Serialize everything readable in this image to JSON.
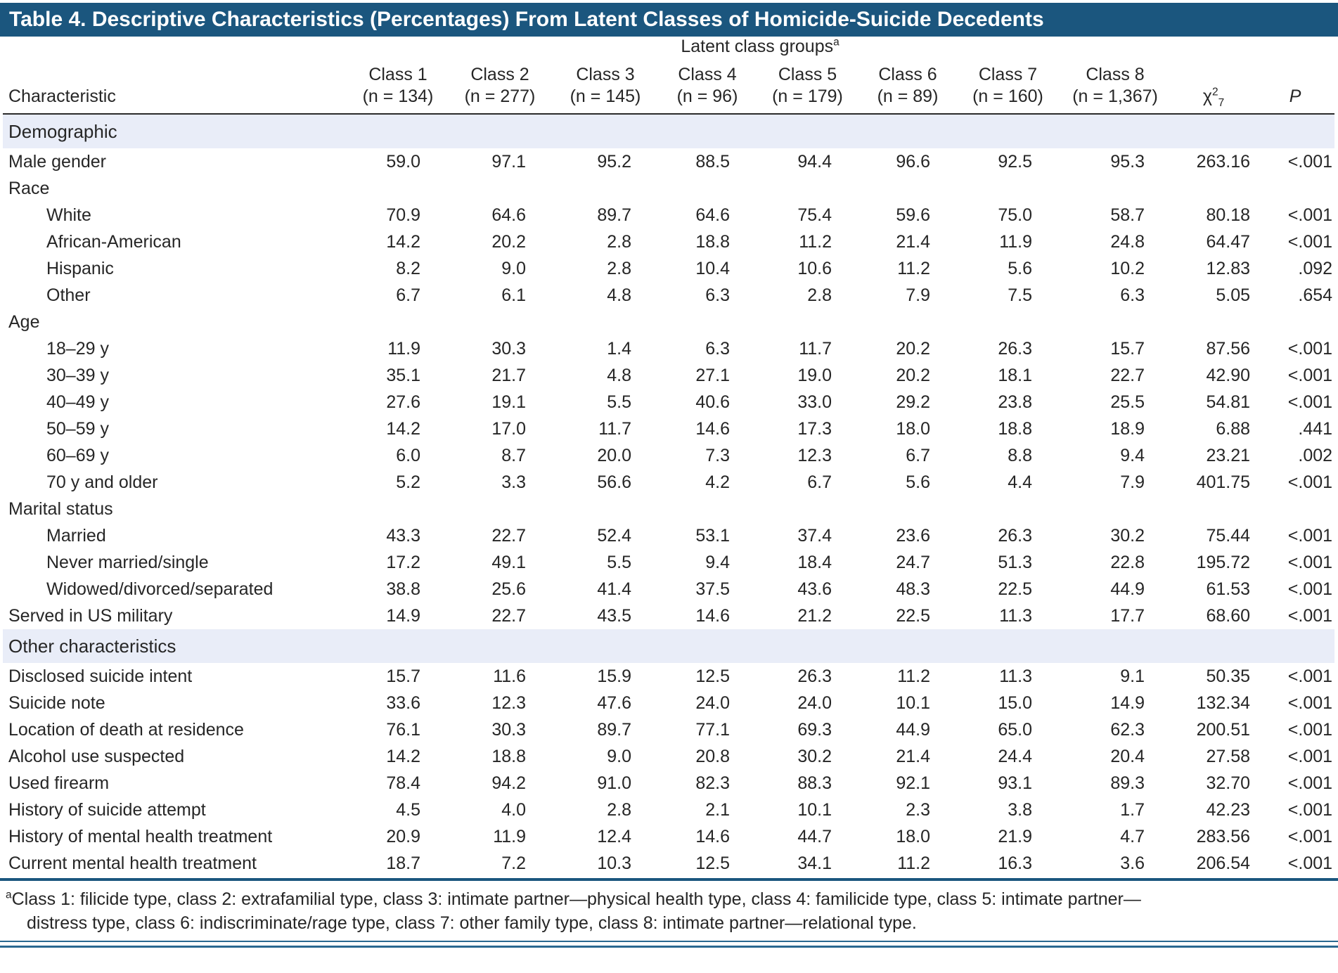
{
  "title": "Table 4. Descriptive Characteristics (Percentages) From Latent Classes of Homicide-Suicide Decedents",
  "header": {
    "group_label": "Latent class groups",
    "group_sup": "a",
    "characteristic": "Characteristic",
    "classes": [
      {
        "label": "Class 1",
        "n": "(n = 134)"
      },
      {
        "label": "Class 2",
        "n": "(n = 277)"
      },
      {
        "label": "Class 3",
        "n": "(n = 145)"
      },
      {
        "label": "Class 4",
        "n": "(n = 96)"
      },
      {
        "label": "Class 5",
        "n": "(n = 179)"
      },
      {
        "label": "Class 6",
        "n": "(n = 89)"
      },
      {
        "label": "Class 7",
        "n": "(n = 160)"
      },
      {
        "label": "Class 8",
        "n": "(n = 1,367)"
      }
    ],
    "chi": {
      "base": "χ",
      "sup": "2",
      "sub": "7"
    },
    "p_label": "P"
  },
  "sections": [
    {
      "name": "Demographic",
      "rows": [
        {
          "label": "Male gender",
          "indent": false,
          "values": [
            "59.0",
            "97.1",
            "95.2",
            "88.5",
            "94.4",
            "96.6",
            "92.5",
            "95.3",
            "263.16",
            "<.001"
          ]
        },
        {
          "label": "Race",
          "indent": false,
          "values": []
        },
        {
          "label": "White",
          "indent": true,
          "values": [
            "70.9",
            "64.6",
            "89.7",
            "64.6",
            "75.4",
            "59.6",
            "75.0",
            "58.7",
            "80.18",
            "<.001"
          ]
        },
        {
          "label": "African-American",
          "indent": true,
          "values": [
            "14.2",
            "20.2",
            "2.8",
            "18.8",
            "11.2",
            "21.4",
            "11.9",
            "24.8",
            "64.47",
            "<.001"
          ]
        },
        {
          "label": "Hispanic",
          "indent": true,
          "values": [
            "8.2",
            "9.0",
            "2.8",
            "10.4",
            "10.6",
            "11.2",
            "5.6",
            "10.2",
            "12.83",
            ".092"
          ]
        },
        {
          "label": "Other",
          "indent": true,
          "values": [
            "6.7",
            "6.1",
            "4.8",
            "6.3",
            "2.8",
            "7.9",
            "7.5",
            "6.3",
            "5.05",
            ".654"
          ]
        },
        {
          "label": "Age",
          "indent": false,
          "values": []
        },
        {
          "label": "18–29 y",
          "indent": true,
          "values": [
            "11.9",
            "30.3",
            "1.4",
            "6.3",
            "11.7",
            "20.2",
            "26.3",
            "15.7",
            "87.56",
            "<.001"
          ]
        },
        {
          "label": "30–39 y",
          "indent": true,
          "values": [
            "35.1",
            "21.7",
            "4.8",
            "27.1",
            "19.0",
            "20.2",
            "18.1",
            "22.7",
            "42.90",
            "<.001"
          ]
        },
        {
          "label": "40–49 y",
          "indent": true,
          "values": [
            "27.6",
            "19.1",
            "5.5",
            "40.6",
            "33.0",
            "29.2",
            "23.8",
            "25.5",
            "54.81",
            "<.001"
          ]
        },
        {
          "label": "50–59 y",
          "indent": true,
          "values": [
            "14.2",
            "17.0",
            "11.7",
            "14.6",
            "17.3",
            "18.0",
            "18.8",
            "18.9",
            "6.88",
            ".441"
          ]
        },
        {
          "label": "60–69 y",
          "indent": true,
          "values": [
            "6.0",
            "8.7",
            "20.0",
            "7.3",
            "12.3",
            "6.7",
            "8.8",
            "9.4",
            "23.21",
            ".002"
          ]
        },
        {
          "label": "70 y and older",
          "indent": true,
          "values": [
            "5.2",
            "3.3",
            "56.6",
            "4.2",
            "6.7",
            "5.6",
            "4.4",
            "7.9",
            "401.75",
            "<.001"
          ]
        },
        {
          "label": "Marital status",
          "indent": false,
          "values": []
        },
        {
          "label": "Married",
          "indent": true,
          "values": [
            "43.3",
            "22.7",
            "52.4",
            "53.1",
            "37.4",
            "23.6",
            "26.3",
            "30.2",
            "75.44",
            "<.001"
          ]
        },
        {
          "label": "Never married/single",
          "indent": true,
          "values": [
            "17.2",
            "49.1",
            "5.5",
            "9.4",
            "18.4",
            "24.7",
            "51.3",
            "22.8",
            "195.72",
            "<.001"
          ]
        },
        {
          "label": "Widowed/divorced/separated",
          "indent": true,
          "values": [
            "38.8",
            "25.6",
            "41.4",
            "37.5",
            "43.6",
            "48.3",
            "22.5",
            "44.9",
            "61.53",
            "<.001"
          ]
        },
        {
          "label": "Served in US military",
          "indent": false,
          "values": [
            "14.9",
            "22.7",
            "43.5",
            "14.6",
            "21.2",
            "22.5",
            "11.3",
            "17.7",
            "68.60",
            "<.001"
          ]
        }
      ]
    },
    {
      "name": "Other characteristics",
      "rows": [
        {
          "label": "Disclosed suicide intent",
          "indent": false,
          "values": [
            "15.7",
            "11.6",
            "15.9",
            "12.5",
            "26.3",
            "11.2",
            "11.3",
            "9.1",
            "50.35",
            "<.001"
          ]
        },
        {
          "label": "Suicide note",
          "indent": false,
          "values": [
            "33.6",
            "12.3",
            "47.6",
            "24.0",
            "24.0",
            "10.1",
            "15.0",
            "14.9",
            "132.34",
            "<.001"
          ]
        },
        {
          "label": "Location of death at residence",
          "indent": false,
          "values": [
            "76.1",
            "30.3",
            "89.7",
            "77.1",
            "69.3",
            "44.9",
            "65.0",
            "62.3",
            "200.51",
            "<.001"
          ]
        },
        {
          "label": "Alcohol use suspected",
          "indent": false,
          "values": [
            "14.2",
            "18.8",
            "9.0",
            "20.8",
            "30.2",
            "21.4",
            "24.4",
            "20.4",
            "27.58",
            "<.001"
          ]
        },
        {
          "label": "Used firearm",
          "indent": false,
          "values": [
            "78.4",
            "94.2",
            "91.0",
            "82.3",
            "88.3",
            "92.1",
            "93.1",
            "89.3",
            "32.70",
            "<.001"
          ]
        },
        {
          "label": "History of suicide attempt",
          "indent": false,
          "values": [
            "4.5",
            "4.0",
            "2.8",
            "2.1",
            "10.1",
            "2.3",
            "3.8",
            "1.7",
            "42.23",
            "<.001"
          ]
        },
        {
          "label": "History of mental health treatment",
          "indent": false,
          "values": [
            "20.9",
            "11.9",
            "12.4",
            "14.6",
            "44.7",
            "18.0",
            "21.9",
            "4.7",
            "283.56",
            "<.001"
          ]
        },
        {
          "label": "Current mental health treatment",
          "indent": false,
          "values": [
            "18.7",
            "7.2",
            "10.3",
            "12.5",
            "34.1",
            "11.2",
            "16.3",
            "3.6",
            "206.54",
            "<.001"
          ]
        }
      ]
    }
  ],
  "footnote": {
    "sup": "a",
    "line1": "Class 1: filicide type, class 2: extrafamilial type, class 3: intimate partner—physical health type, class 4: familicide type, class 5: intimate partner—",
    "line2": "distress type, class 6: indiscriminate/rage type, class 7: other family type, class 8: intimate partner—relational type."
  },
  "colors": {
    "title_bar": "#1b567e",
    "section_bg": "#e9edf8",
    "rule_blue": "#2a6890",
    "header_rule": "#2b2b2b"
  }
}
